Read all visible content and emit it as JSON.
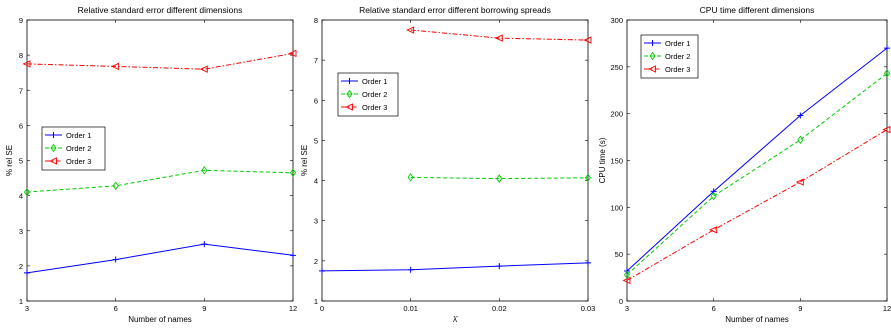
{
  "chart_data": [
    {
      "type": "line",
      "title": "Relative standard error different dimensions",
      "xlabel": "Number of names",
      "ylabel": "% rel SE",
      "x": [
        3,
        6,
        9,
        12
      ],
      "xticks": [
        3,
        6,
        9,
        12
      ],
      "yticks": [
        1,
        2,
        3,
        4,
        5,
        6,
        7,
        8,
        9
      ],
      "xlim": [
        3,
        12
      ],
      "ylim": [
        1,
        9
      ],
      "legend": "left-middle",
      "series": [
        {
          "name": "Order 1",
          "values": [
            1.8,
            2.18,
            2.62,
            2.3
          ],
          "color": "#0000ff",
          "style": "solid",
          "marker": "plus"
        },
        {
          "name": "Order 2",
          "values": [
            4.1,
            4.28,
            4.72,
            4.65
          ],
          "color": "#00cc00",
          "style": "dashed",
          "marker": "diamond"
        },
        {
          "name": "Order 3",
          "values": [
            7.75,
            7.68,
            7.6,
            8.05
          ],
          "color": "#ff0000",
          "style": "dashdot",
          "marker": "triangle-left"
        }
      ]
    },
    {
      "type": "line",
      "title": "Relative standard error different borrowing spreads",
      "xlabel": "λ̄",
      "ylabel": "% rel SE",
      "xticks": [
        0,
        0.01,
        0.02,
        0.03
      ],
      "yticks": [
        1,
        2,
        3,
        4,
        5,
        6,
        7,
        8
      ],
      "xlim": [
        0,
        0.03
      ],
      "ylim": [
        1,
        8
      ],
      "legend": "left-upper",
      "series": [
        {
          "name": "Order 1",
          "x": [
            0,
            0.01,
            0.02,
            0.03
          ],
          "values": [
            1.75,
            1.78,
            1.87,
            1.95
          ],
          "color": "#0000ff",
          "style": "solid",
          "marker": "plus"
        },
        {
          "name": "Order 2",
          "x": [
            0.01,
            0.02,
            0.03
          ],
          "values": [
            4.08,
            4.05,
            4.07
          ],
          "color": "#00cc00",
          "style": "dashed",
          "marker": "diamond"
        },
        {
          "name": "Order 3",
          "x": [
            0.01,
            0.02,
            0.03
          ],
          "values": [
            7.75,
            7.55,
            7.5
          ],
          "color": "#ff0000",
          "style": "dashdot",
          "marker": "triangle-left"
        }
      ]
    },
    {
      "type": "line",
      "title": "CPU time different dimensions",
      "xlabel": "Number of names",
      "ylabel": "CPU time (s)",
      "x": [
        3,
        6,
        9,
        12
      ],
      "xticks": [
        3,
        6,
        9,
        12
      ],
      "yticks": [
        0,
        50,
        100,
        150,
        200,
        250,
        300
      ],
      "xlim": [
        3,
        12
      ],
      "ylim": [
        0,
        300
      ],
      "legend": "top-left",
      "series": [
        {
          "name": "Order 1",
          "values": [
            32,
            117,
            198,
            270
          ],
          "color": "#0000ff",
          "style": "solid",
          "marker": "plus"
        },
        {
          "name": "Order 2",
          "values": [
            28,
            112,
            172,
            243
          ],
          "color": "#00cc00",
          "style": "dashed",
          "marker": "diamond"
        },
        {
          "name": "Order 3",
          "values": [
            22,
            76,
            127,
            183
          ],
          "color": "#ff0000",
          "style": "dashdot",
          "marker": "triangle-left"
        }
      ]
    }
  ]
}
